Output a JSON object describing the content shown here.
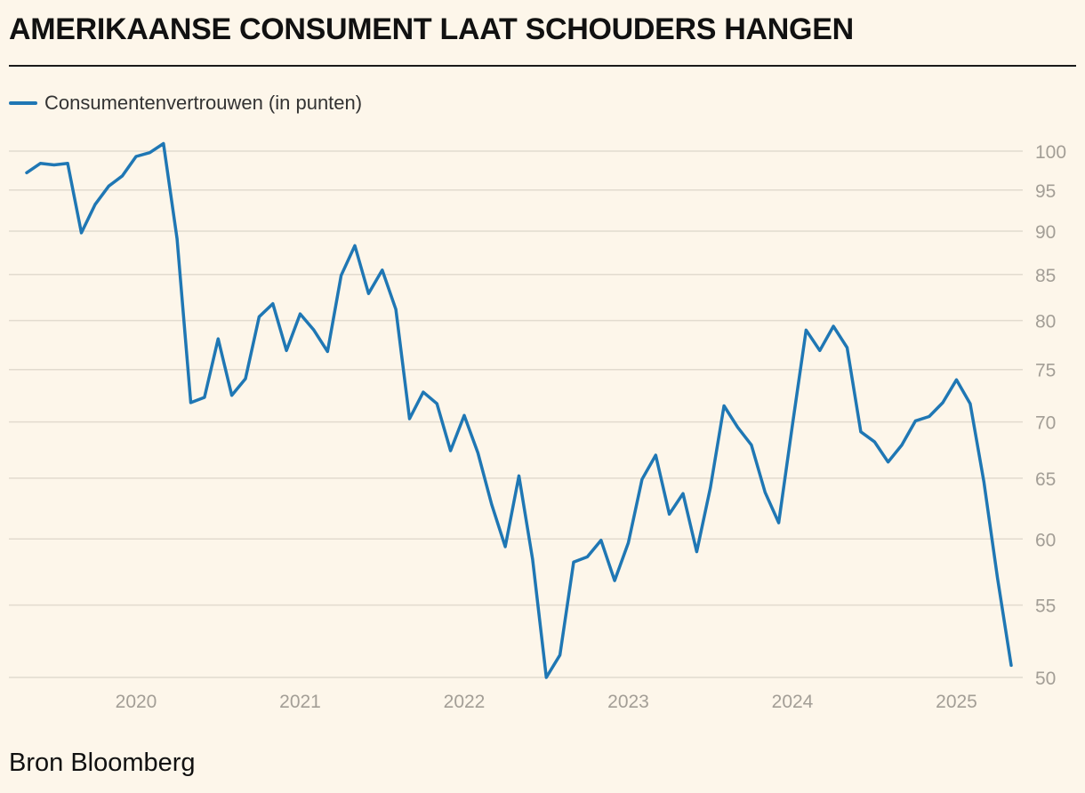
{
  "chart_data": {
    "type": "line",
    "title": "AMERIKAANSE CONSUMENT LAAT SCHOUDERS HANGEN",
    "xlabel": "",
    "ylabel": "",
    "ylim": [
      50,
      101
    ],
    "yticks": [
      50,
      55,
      60,
      65,
      70,
      75,
      80,
      85,
      90,
      95,
      100
    ],
    "xticks": [
      "2020",
      "2021",
      "2022",
      "2023",
      "2024",
      "2025"
    ],
    "legend": "top-left",
    "x_start": "2019-05",
    "x_unit": "month",
    "series": [
      {
        "name": "Consumentenvertrouwen (in punten)",
        "color": "#1f77b4",
        "values": [
          97.2,
          98.4,
          98.2,
          98.4,
          89.8,
          93.2,
          95.5,
          96.8,
          99.3,
          99.8,
          101.0,
          89.1,
          71.8,
          72.3,
          78.1,
          72.5,
          74.1,
          80.4,
          81.8,
          76.9,
          80.7,
          79.0,
          76.8,
          84.9,
          88.3,
          82.9,
          85.5,
          81.2,
          70.3,
          72.8,
          71.7,
          67.4,
          70.6,
          67.2,
          62.8,
          59.4,
          65.2,
          58.4,
          50.0,
          51.5,
          58.2,
          58.6,
          59.9,
          56.8,
          59.7,
          64.9,
          67.0,
          62.0,
          63.7,
          59.0,
          64.2,
          71.5,
          69.5,
          67.9,
          63.8,
          61.3,
          69.7,
          79.0,
          76.9,
          79.4,
          77.2,
          69.1,
          68.2,
          66.4,
          67.9,
          70.1,
          70.5,
          71.8,
          74.0,
          71.7,
          64.7,
          57.0,
          50.8
        ]
      }
    ]
  },
  "source": "Bron Bloomberg"
}
